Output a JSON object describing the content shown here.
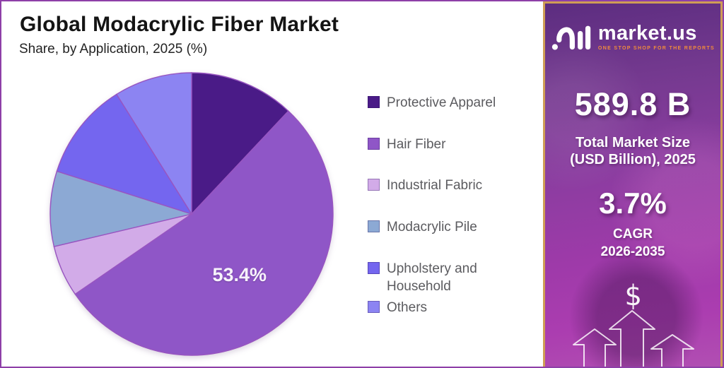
{
  "header": {
    "title": "Global Modacrylic Fiber Market",
    "subtitle": "Share, by Application, 2025 (%)"
  },
  "chart_data": {
    "type": "pie",
    "title": "Global Modacrylic Fiber Market",
    "subtitle": "Share, by Application, 2025 (%)",
    "unit": "%",
    "direction": "clockwise",
    "start_angle_deg": 0,
    "legend_position": "right",
    "slice_border_color": "#9855c0",
    "series": [
      {
        "label": "Protective Apparel",
        "value": 12.0,
        "color": "#4a1b87",
        "show_label": false
      },
      {
        "label": "Hair Fiber",
        "value": 53.4,
        "color": "#8f56c7",
        "show_label": true,
        "data_label": "53.4%"
      },
      {
        "label": "Industrial Fabric",
        "value": 5.9,
        "color": "#d2abe8",
        "show_label": false
      },
      {
        "label": "Modacrylic Pile",
        "value": 8.6,
        "color": "#8ca9d4",
        "show_label": false
      },
      {
        "label": "Upholstery and Household",
        "value": 11.2,
        "color": "#7466ef",
        "show_label": false
      },
      {
        "label": "Others",
        "value": 8.9,
        "color": "#8c84f2",
        "show_label": false
      }
    ]
  },
  "sidebar": {
    "brand_name": "market.us",
    "brand_tagline": "ONE STOP SHOP FOR THE REPORTS",
    "market_size_value": "589.8 B",
    "market_size_label_line1": "Total Market Size",
    "market_size_label_line2": "(USD Billion), 2025",
    "cagr_value": "3.7%",
    "cagr_label_line1": "CAGR",
    "cagr_label_line2": "2026-2035",
    "dollar_symbol": "$",
    "colors": {
      "border_gold": "#cf9d55",
      "tagline_orange": "#f08c3c",
      "panel_gradient_top": "#5c2d80",
      "panel_gradient_bottom": "#b14fb2"
    }
  },
  "frame": {
    "chart_border_color": "#8e3fa8"
  }
}
